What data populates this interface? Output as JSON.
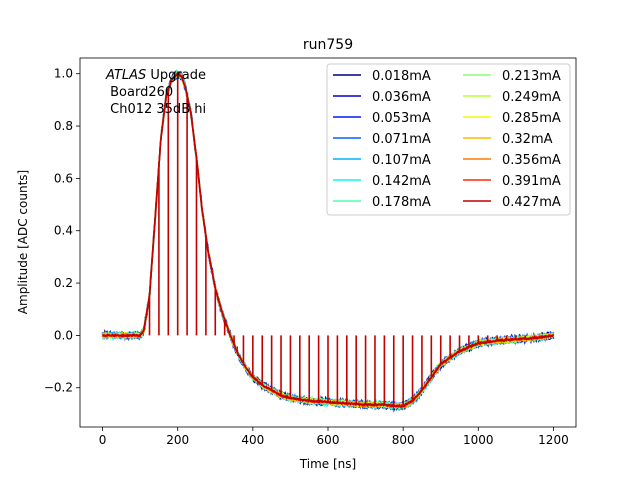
{
  "chart_data": {
    "type": "line",
    "title": "run759",
    "xlabel": "Time [ns]",
    "ylabel": "Amplitude [ADC counts]",
    "xlim": [
      -60,
      1260
    ],
    "ylim": [
      -0.35,
      1.06
    ],
    "xticks": [
      0,
      200,
      400,
      600,
      800,
      1000,
      1200
    ],
    "yticks": [
      -0.2,
      0.0,
      0.2,
      0.4,
      0.6,
      0.8,
      1.0
    ],
    "xtick_labels": [
      "0",
      "200",
      "400",
      "600",
      "800",
      "1000",
      "1200"
    ],
    "ytick_labels": [
      "−0.2",
      "0.0",
      "0.2",
      "0.4",
      "0.6",
      "0.8",
      "1.0"
    ],
    "grid": false,
    "legend_location": "upper right",
    "legend_columns": 2,
    "annotation": {
      "atlas": "ATLAS",
      "line1_rest": " Upgrade",
      "line2": " Board260",
      "line3": " Ch012 35dB hi"
    },
    "stick_times_ns": [
      0,
      25,
      50,
      75,
      100,
      125,
      150,
      175,
      200,
      225,
      250,
      275,
      300,
      325,
      350,
      375,
      400,
      425,
      450,
      475,
      500,
      525,
      550,
      575,
      600,
      625,
      650,
      675,
      700,
      725,
      750,
      775,
      800,
      825,
      850,
      875,
      900,
      925,
      950,
      975,
      1000,
      1025,
      1050,
      1075,
      1100,
      1125,
      1150,
      1175,
      1200
    ],
    "pulse_shape": {
      "x": [
        0,
        100,
        110,
        125,
        140,
        155,
        170,
        185,
        200,
        210,
        220,
        235,
        250,
        265,
        280,
        300,
        320,
        340,
        360,
        380,
        400,
        425,
        450,
        475,
        500,
        550,
        600,
        650,
        700,
        750,
        780,
        800,
        825,
        850,
        875,
        900,
        950,
        1000,
        1050,
        1100,
        1150,
        1200
      ],
      "y": [
        0.0,
        0.0,
        0.02,
        0.15,
        0.45,
        0.75,
        0.92,
        0.98,
        1.0,
        0.99,
        0.95,
        0.85,
        0.68,
        0.48,
        0.33,
        0.18,
        0.08,
        0.0,
        -0.07,
        -0.12,
        -0.16,
        -0.19,
        -0.21,
        -0.23,
        -0.24,
        -0.25,
        -0.255,
        -0.26,
        -0.265,
        -0.265,
        -0.27,
        -0.27,
        -0.25,
        -0.21,
        -0.16,
        -0.11,
        -0.06,
        -0.03,
        -0.02,
        -0.015,
        -0.01,
        0.0
      ]
    },
    "series": [
      {
        "name": "0.018mA",
        "color": "#00007f"
      },
      {
        "name": "0.036mA",
        "color": "#0000c8"
      },
      {
        "name": "0.053mA",
        "color": "#0018ff"
      },
      {
        "name": "0.071mA",
        "color": "#0064ff"
      },
      {
        "name": "0.107mA",
        "color": "#00b4ff"
      },
      {
        "name": "0.142mA",
        "color": "#0ff8e6"
      },
      {
        "name": "0.178mA",
        "color": "#4dffaa"
      },
      {
        "name": "0.213mA",
        "color": "#86ff70"
      },
      {
        "name": "0.249mA",
        "color": "#baff3c"
      },
      {
        "name": "0.285mA",
        "color": "#f4f802"
      },
      {
        "name": "0.32mA",
        "color": "#ffb900"
      },
      {
        "name": "0.356mA",
        "color": "#ff7a00"
      },
      {
        "name": "0.391mA",
        "color": "#ff2f00"
      },
      {
        "name": "0.427mA",
        "color": "#c10000"
      }
    ]
  }
}
